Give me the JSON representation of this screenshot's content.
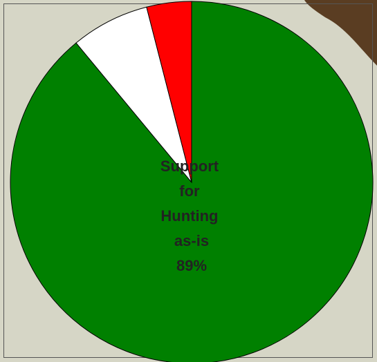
{
  "chart_data": {
    "type": "pie",
    "categories": [
      "Support for Hunting as-is",
      null,
      null
    ],
    "values": [
      89,
      7,
      4
    ],
    "value_labels": [
      "89%",
      null,
      null
    ],
    "colors": [
      "#008000",
      "#ffffff",
      "#ff0000"
    ]
  }
}
